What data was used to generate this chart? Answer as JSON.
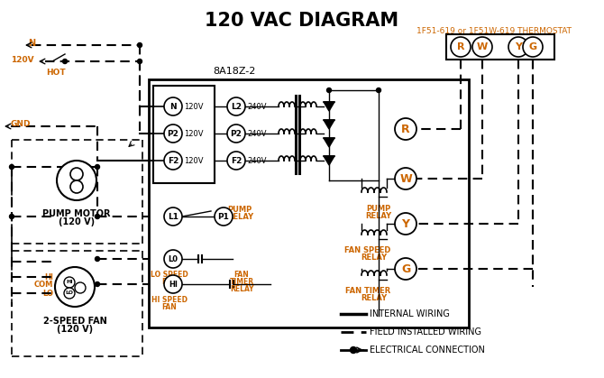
{
  "title": "120 VAC DIAGRAM",
  "bg_color": "#ffffff",
  "black": "#000000",
  "orange": "#cc6600",
  "thermostat_label": "1F51-619 or 1F51W-619 THERMOSTAT",
  "thermostat_terminals": [
    "R",
    "W",
    "Y",
    "G"
  ],
  "controller_label": "8A18Z-2",
  "left_terminals": [
    "N",
    "P2",
    "F2"
  ],
  "left_voltages": [
    "120V",
    "120V",
    "120V"
  ],
  "right_terminals": [
    "L2",
    "P2",
    "F2"
  ],
  "right_voltages": [
    "240V",
    "240V",
    "240V"
  ],
  "relay_terminals": [
    "R",
    "W",
    "Y",
    "G"
  ],
  "legend_items": [
    "INTERNAL WIRING",
    "FIELD INSTALLED WIRING",
    "ELECTRICAL CONNECTION"
  ],
  "pump_motor_label1": "PUMP MOTOR",
  "pump_motor_label2": "(120 V)",
  "fan_label1": "2-SPEED FAN",
  "fan_label2": "(120 V)"
}
